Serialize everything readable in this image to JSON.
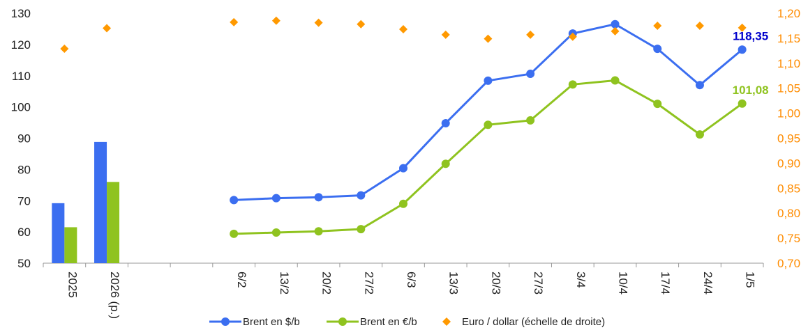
{
  "chart_data": {
    "type": "bar+line+scatter",
    "title": "",
    "categories": [
      "2025",
      "2026 (p.)",
      "",
      "",
      "6/2",
      "13/2",
      "20/2",
      "27/2",
      "6/3",
      "13/3",
      "20/3",
      "27/3",
      "3/4",
      "10/4",
      "17/4",
      "24/4",
      "1/5"
    ],
    "left_axis": {
      "min": 50,
      "max": 130,
      "step": 10,
      "ticks": [
        "50",
        "60",
        "70",
        "80",
        "90",
        "100",
        "110",
        "120",
        "130"
      ]
    },
    "right_axis": {
      "min": 0.7,
      "max": 1.2,
      "step": 0.05,
      "ticks": [
        "0,70",
        "0,75",
        "0,80",
        "0,85",
        "0,90",
        "0,95",
        "1,00",
        "1,05",
        "1,10",
        "1,15",
        "1,20"
      ],
      "color": "#ff8c00"
    },
    "bars": {
      "categories": [
        "2025",
        "2026 (p.)"
      ],
      "series": [
        {
          "key": "usd",
          "values": [
            69.2,
            88.8
          ]
        },
        {
          "key": "eur",
          "values": [
            61.5,
            76.0
          ]
        }
      ]
    },
    "series": [
      {
        "name": "Brent en $/b",
        "color": "#3b6ef0",
        "type": "line",
        "x": [
          "6/2",
          "13/2",
          "20/2",
          "27/2",
          "6/3",
          "13/3",
          "20/3",
          "27/3",
          "3/4",
          "10/4",
          "17/4",
          "24/4",
          "1/5"
        ],
        "values": [
          70.2,
          70.8,
          71.1,
          71.7,
          80.4,
          94.8,
          108.4,
          110.6,
          123.5,
          126.5,
          118.6,
          107.0,
          118.35
        ]
      },
      {
        "name": "Brent en €/b",
        "color": "#8fc31f",
        "type": "line",
        "x": [
          "6/2",
          "13/2",
          "20/2",
          "27/2",
          "6/3",
          "13/3",
          "20/3",
          "27/3",
          "3/4",
          "10/4",
          "17/4",
          "24/4",
          "1/5"
        ],
        "values": [
          59.4,
          59.8,
          60.2,
          60.9,
          69.0,
          81.8,
          94.3,
          95.7,
          107.2,
          108.5,
          101.0,
          91.2,
          101.08
        ]
      },
      {
        "name": "Euro / dollar (échelle de droite)",
        "color": "#ff9900",
        "type": "scatter",
        "axis": "right",
        "x": [
          "2025",
          "2026 (p.)",
          "6/2",
          "13/2",
          "20/2",
          "27/2",
          "6/3",
          "13/3",
          "20/3",
          "27/3",
          "3/4",
          "10/4",
          "17/4",
          "24/4",
          "1/5"
        ],
        "values": [
          1.129,
          1.17,
          1.182,
          1.185,
          1.181,
          1.178,
          1.168,
          1.157,
          1.149,
          1.157,
          1.153,
          1.164,
          1.175,
          1.175,
          1.171
        ]
      }
    ],
    "data_labels": [
      {
        "text": "118,35",
        "color": "#0000cc"
      },
      {
        "text": "101,08",
        "color": "#8fc31f"
      }
    ],
    "legend": [
      {
        "label": "Brent en $/b"
      },
      {
        "label": "Brent en €/b"
      },
      {
        "label": "Euro / dollar (échelle de droite)"
      }
    ],
    "legend_position": "bottom",
    "grid": false
  }
}
